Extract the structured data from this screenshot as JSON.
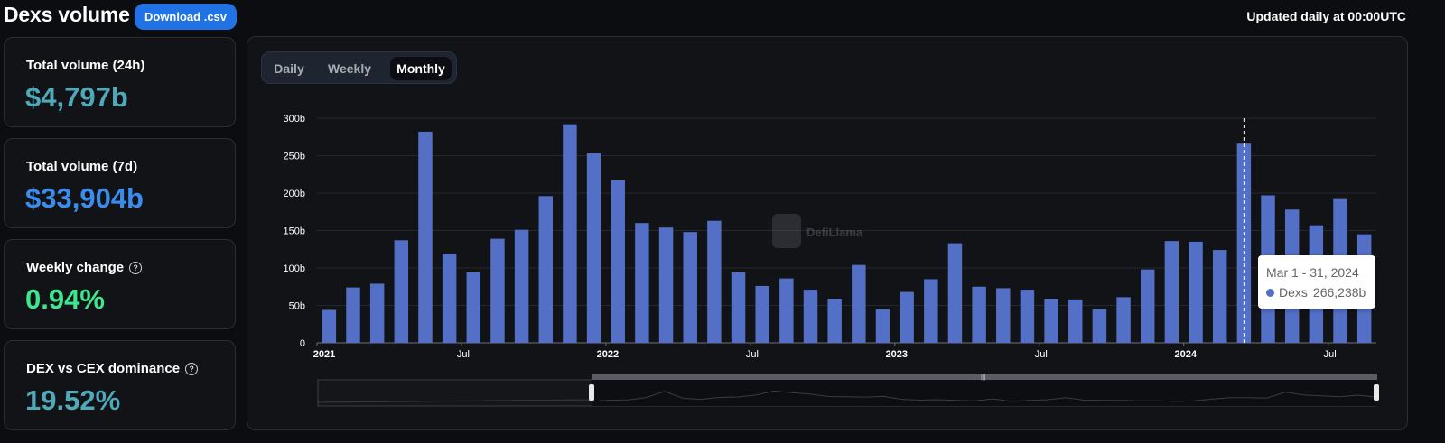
{
  "header": {
    "title": "Dexs volume",
    "download_label": "Download .csv",
    "updated_text": "Updated daily at 00:00UTC"
  },
  "stats": [
    {
      "label": "Total volume (24h)",
      "value": "$4,797b",
      "color": "#4fa9b8",
      "help": false
    },
    {
      "label": "Total volume (7d)",
      "value": "$33,904b",
      "color": "#3b8ded",
      "help": false
    },
    {
      "label": "Weekly change",
      "value": "0.94%",
      "color": "#3fe58f",
      "help": true
    },
    {
      "label": "DEX vs CEX dominance",
      "value": "19.52%",
      "color": "#4fa9b8",
      "help": true
    }
  ],
  "toggle": {
    "options": [
      "Daily",
      "Weekly",
      "Monthly"
    ],
    "selected": "Monthly"
  },
  "watermark": "DefiLlama",
  "tooltip": {
    "date": "Mar 1 - 31, 2024",
    "series": "Dexs",
    "value": "266,238b"
  },
  "colors": {
    "bar": "#5470c6",
    "background": "#121317",
    "accent": "#2172e5"
  },
  "chart_data": {
    "type": "bar",
    "series_name": "Dexs",
    "ylim": [
      0,
      300
    ],
    "y_ticks": [
      "0",
      "50b",
      "100b",
      "150b",
      "200b",
      "250b",
      "300b"
    ],
    "x_tick_labels": [
      {
        "label": "2021",
        "index": 0,
        "bold": true
      },
      {
        "label": "Jul",
        "index": 6,
        "bold": false
      },
      {
        "label": "2022",
        "index": 12,
        "bold": true
      },
      {
        "label": "Jul",
        "index": 18,
        "bold": false
      },
      {
        "label": "2023",
        "index": 24,
        "bold": true
      },
      {
        "label": "Jul",
        "index": 30,
        "bold": false
      },
      {
        "label": "2024",
        "index": 36,
        "bold": true
      },
      {
        "label": "Jul",
        "index": 42,
        "bold": false
      }
    ],
    "categories": [
      "2021-01",
      "2021-02",
      "2021-03",
      "2021-04",
      "2021-05",
      "2021-06",
      "2021-07",
      "2021-08",
      "2021-09",
      "2021-10",
      "2021-11",
      "2021-12",
      "2022-01",
      "2022-02",
      "2022-03",
      "2022-04",
      "2022-05",
      "2022-06",
      "2022-07",
      "2022-08",
      "2022-09",
      "2022-10",
      "2022-11",
      "2022-12",
      "2023-01",
      "2023-02",
      "2023-03",
      "2023-04",
      "2023-05",
      "2023-06",
      "2023-07",
      "2023-08",
      "2023-09",
      "2023-10",
      "2023-11",
      "2023-12",
      "2024-01",
      "2024-02",
      "2024-03",
      "2024-04",
      "2024-05",
      "2024-06",
      "2024-07",
      "2024-08"
    ],
    "values": [
      44,
      74,
      79,
      137,
      282,
      119,
      94,
      139,
      151,
      196,
      292,
      253,
      217,
      160,
      154,
      148,
      163,
      94,
      76,
      86,
      71,
      59,
      104,
      45,
      68,
      85,
      133,
      75,
      73,
      71,
      59,
      58,
      45,
      61,
      98,
      136,
      135,
      124,
      266,
      197,
      178,
      157,
      192,
      145
    ],
    "highlight_index": 38
  }
}
